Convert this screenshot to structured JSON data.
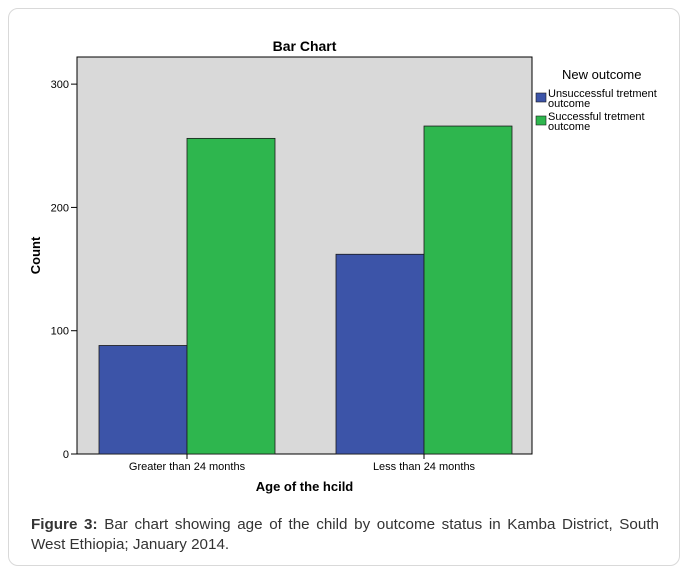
{
  "chart_data": {
    "type": "bar",
    "title": "Bar Chart",
    "xlabel": "Age of the hcild",
    "ylabel": "Count",
    "categories": [
      "Greater than 24 months",
      "Less than 24 months"
    ],
    "series": [
      {
        "name": "Unsuccessful tretment outcome",
        "values": [
          88,
          162
        ],
        "color": "#3c54a8"
      },
      {
        "name": "Successful tretment outcome",
        "values": [
          256,
          266
        ],
        "color": "#2eb64e"
      }
    ],
    "ylim": [
      0,
      300
    ],
    "yticks": [
      "0",
      "100",
      "200",
      "300"
    ],
    "legend_title": "New outcome",
    "legend_position": "right",
    "grid": false,
    "plot_background": "#d9d9d9"
  },
  "caption": {
    "label": "Figure 3:",
    "text": " Bar chart showing age of the child by outcome status in Kamba District, South West Ethiopia; January 2014."
  }
}
